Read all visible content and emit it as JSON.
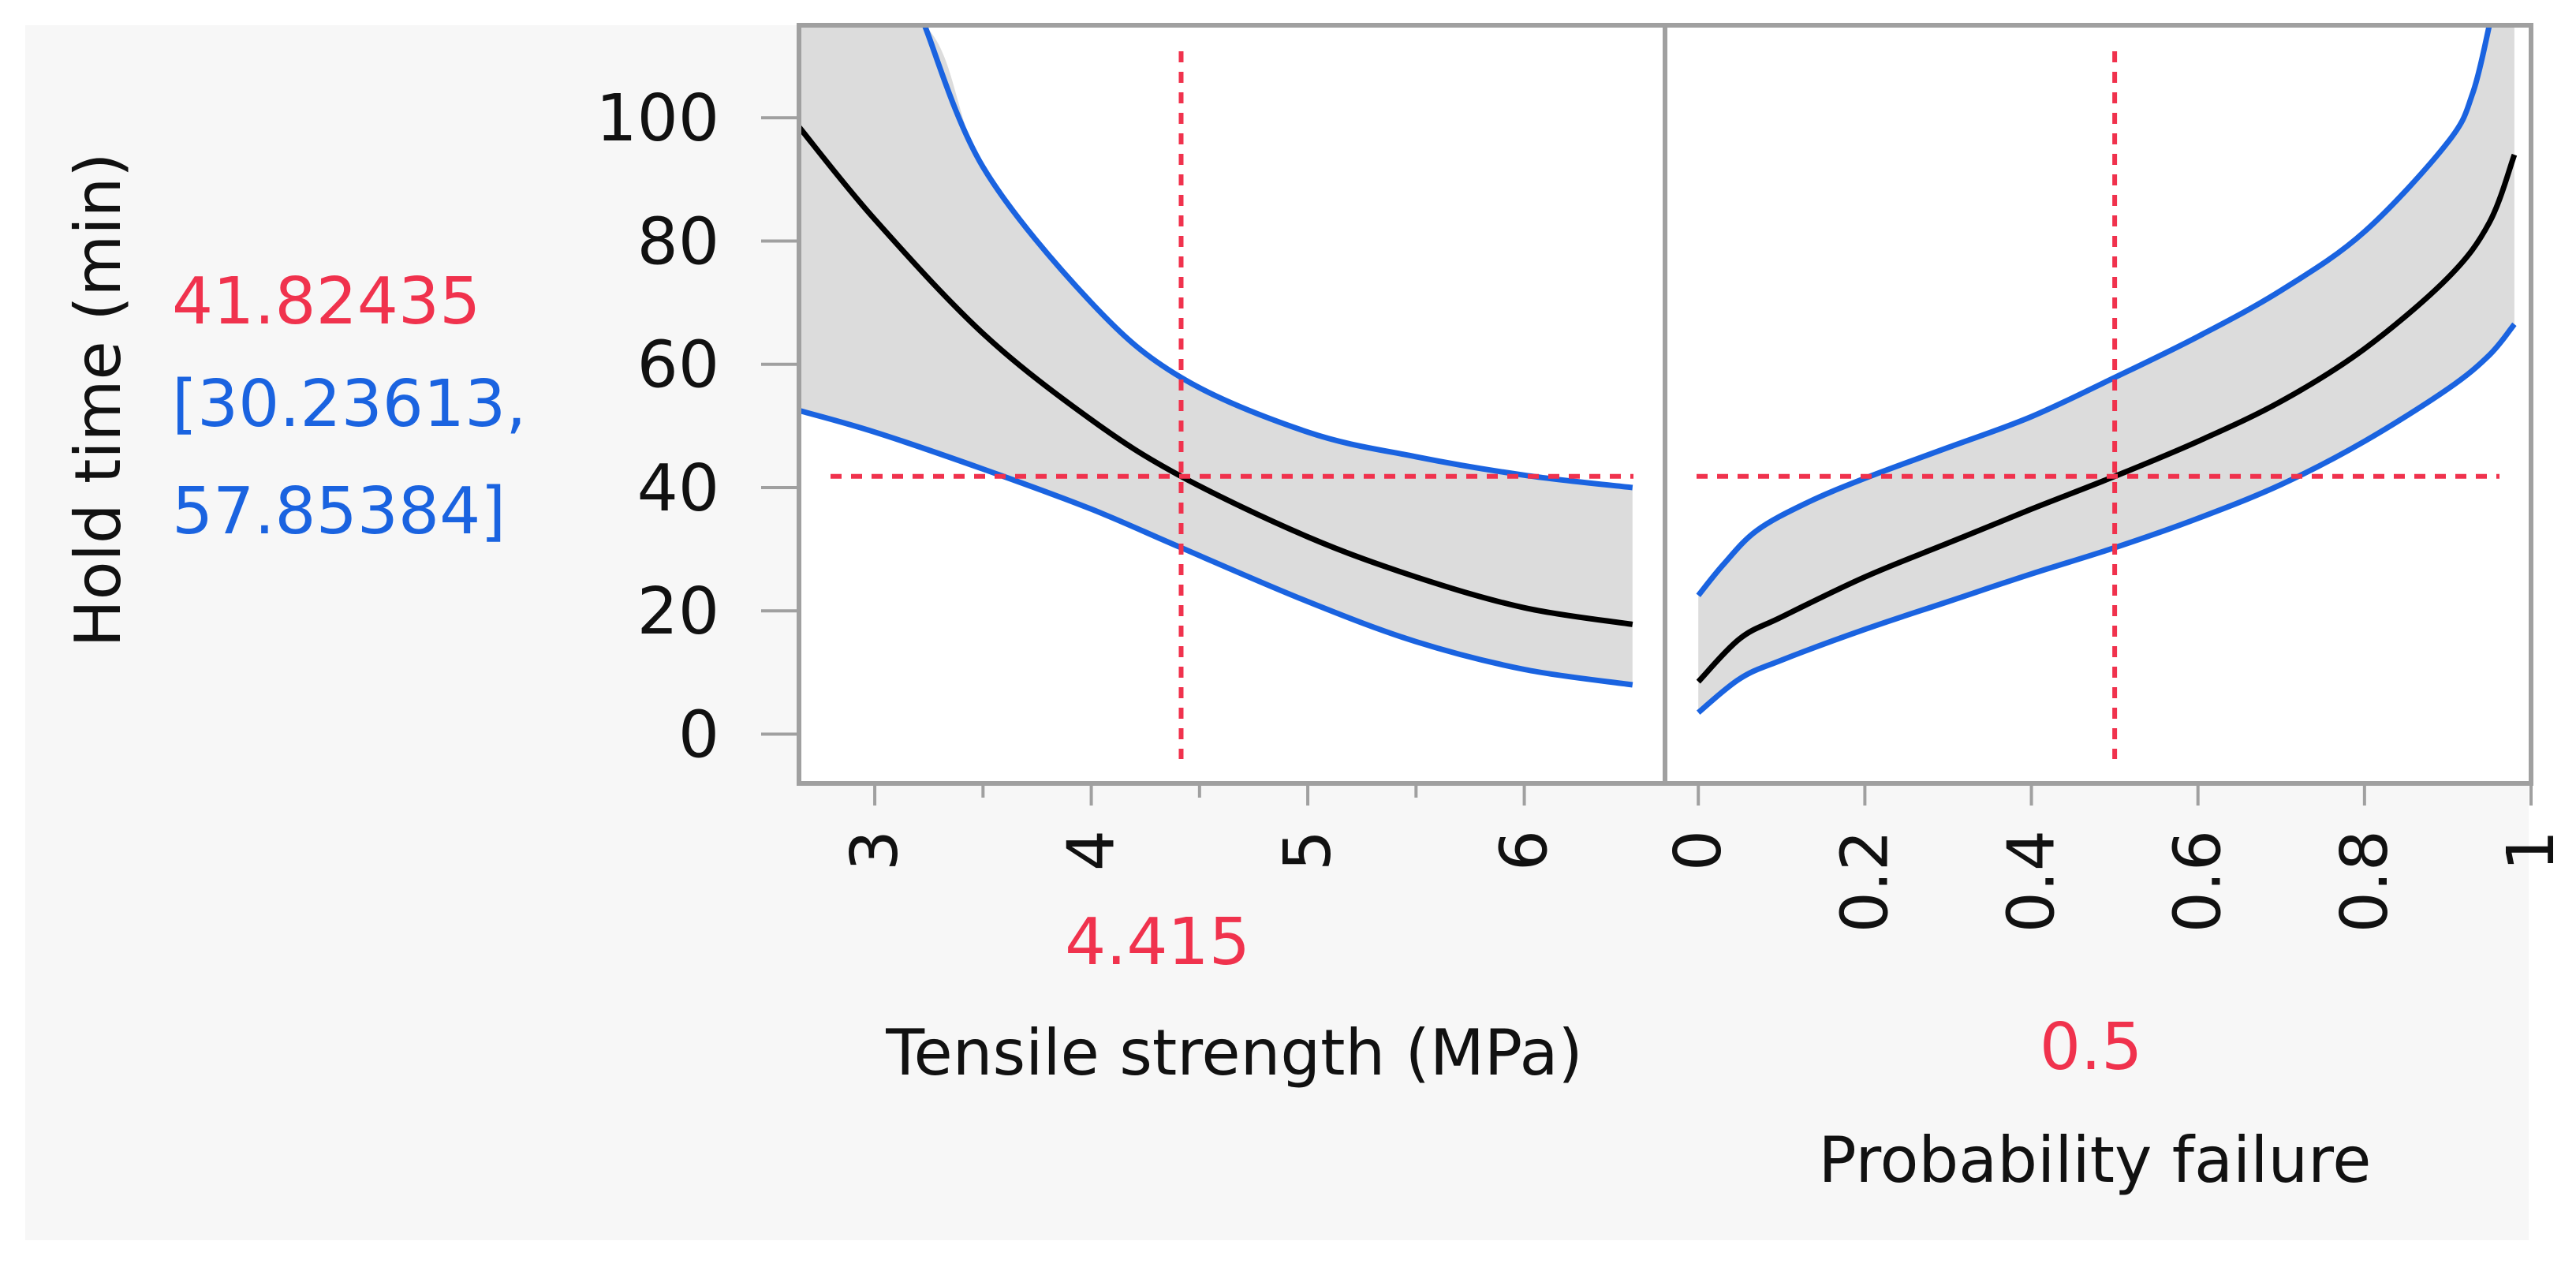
{
  "colors": {
    "background": "#f7f7f7",
    "plot_bg": "#ffffff",
    "frame": "#a0a0a0",
    "band_fill": "#dcdcdc",
    "mean_line": "#000000",
    "ci_line": "#1a63e0",
    "crosshair": "#f0324d",
    "text": "#111111"
  },
  "chart_data": {
    "type": "line",
    "title": "",
    "ylabel": "Hold time (min)",
    "ylim": [
      -8,
      115
    ],
    "yticks": [
      "0",
      "20",
      "40",
      "60",
      "80",
      "100"
    ],
    "response": {
      "value": "41.82435",
      "ci_line1": "[30.23613,",
      "ci_line2": "57.85384]",
      "value_num": 41.82435
    },
    "panels": [
      {
        "xlabel": "Tensile strength (MPa)",
        "xlim": [
          2.65,
          6.65
        ],
        "xticks": [
          "3",
          "4",
          "5",
          "6"
        ],
        "current_x_label": "4.415",
        "current_x": 4.415,
        "series": [
          {
            "name": "Prediction",
            "x": [
              2.65,
              3.0,
              3.5,
              4.0,
              4.415,
              5.0,
              5.5,
              6.0,
              6.5
            ],
            "y": [
              98.5,
              83.5,
              65.0,
              51.0,
              41.82,
              32.0,
              25.5,
              20.5,
              17.8
            ]
          },
          {
            "name": "Upper CI",
            "x": [
              3.23,
              3.5,
              4.0,
              4.415,
              5.0,
              5.5,
              6.0,
              6.5
            ],
            "y": [
              115,
              92.0,
              70.0,
              57.85,
              49.0,
              45.0,
              42.0,
              40.0
            ]
          },
          {
            "name": "Lower CI",
            "x": [
              2.65,
              3.0,
              3.5,
              4.0,
              4.415,
              5.0,
              5.5,
              6.0,
              6.5
            ],
            "y": [
              52.5,
              49.0,
              43.0,
              36.5,
              30.24,
              21.5,
              15.0,
              10.5,
              8.0
            ]
          }
        ]
      },
      {
        "xlabel": "Probability failure",
        "xlim": [
          -0.04,
          1.0
        ],
        "xticks": [
          "0",
          "0.2",
          "0.4",
          "0.6",
          "0.8",
          "1"
        ],
        "current_x_label": "0.5",
        "current_x": 0.5,
        "series": [
          {
            "name": "Prediction",
            "x": [
              0.0,
              0.05,
              0.1,
              0.2,
              0.3,
              0.4,
              0.5,
              0.6,
              0.7,
              0.8,
              0.9,
              0.95,
              0.98
            ],
            "y": [
              8.5,
              15.5,
              19.0,
              25.5,
              31.0,
              36.5,
              41.82,
              47.5,
              54.0,
              62.5,
              74.0,
              83.0,
              94.0
            ]
          },
          {
            "name": "Upper CI",
            "x": [
              0.0,
              0.03,
              0.07,
              0.13,
              0.2,
              0.3,
              0.4,
              0.5,
              0.6,
              0.7,
              0.8,
              0.9,
              0.93,
              0.95
            ],
            "y": [
              22.5,
              27.5,
              33.0,
              37.5,
              41.5,
              46.5,
              51.5,
              57.85,
              64.5,
              72.0,
              81.5,
              96.0,
              104.0,
              115
            ]
          },
          {
            "name": "Lower CI",
            "x": [
              0.0,
              0.05,
              0.1,
              0.2,
              0.3,
              0.4,
              0.5,
              0.6,
              0.7,
              0.8,
              0.9,
              0.95,
              0.98
            ],
            "y": [
              3.5,
              9.0,
              12.0,
              17.0,
              21.5,
              26.0,
              30.24,
              35.0,
              40.5,
              47.5,
              56.0,
              61.5,
              66.5
            ]
          }
        ]
      }
    ]
  }
}
